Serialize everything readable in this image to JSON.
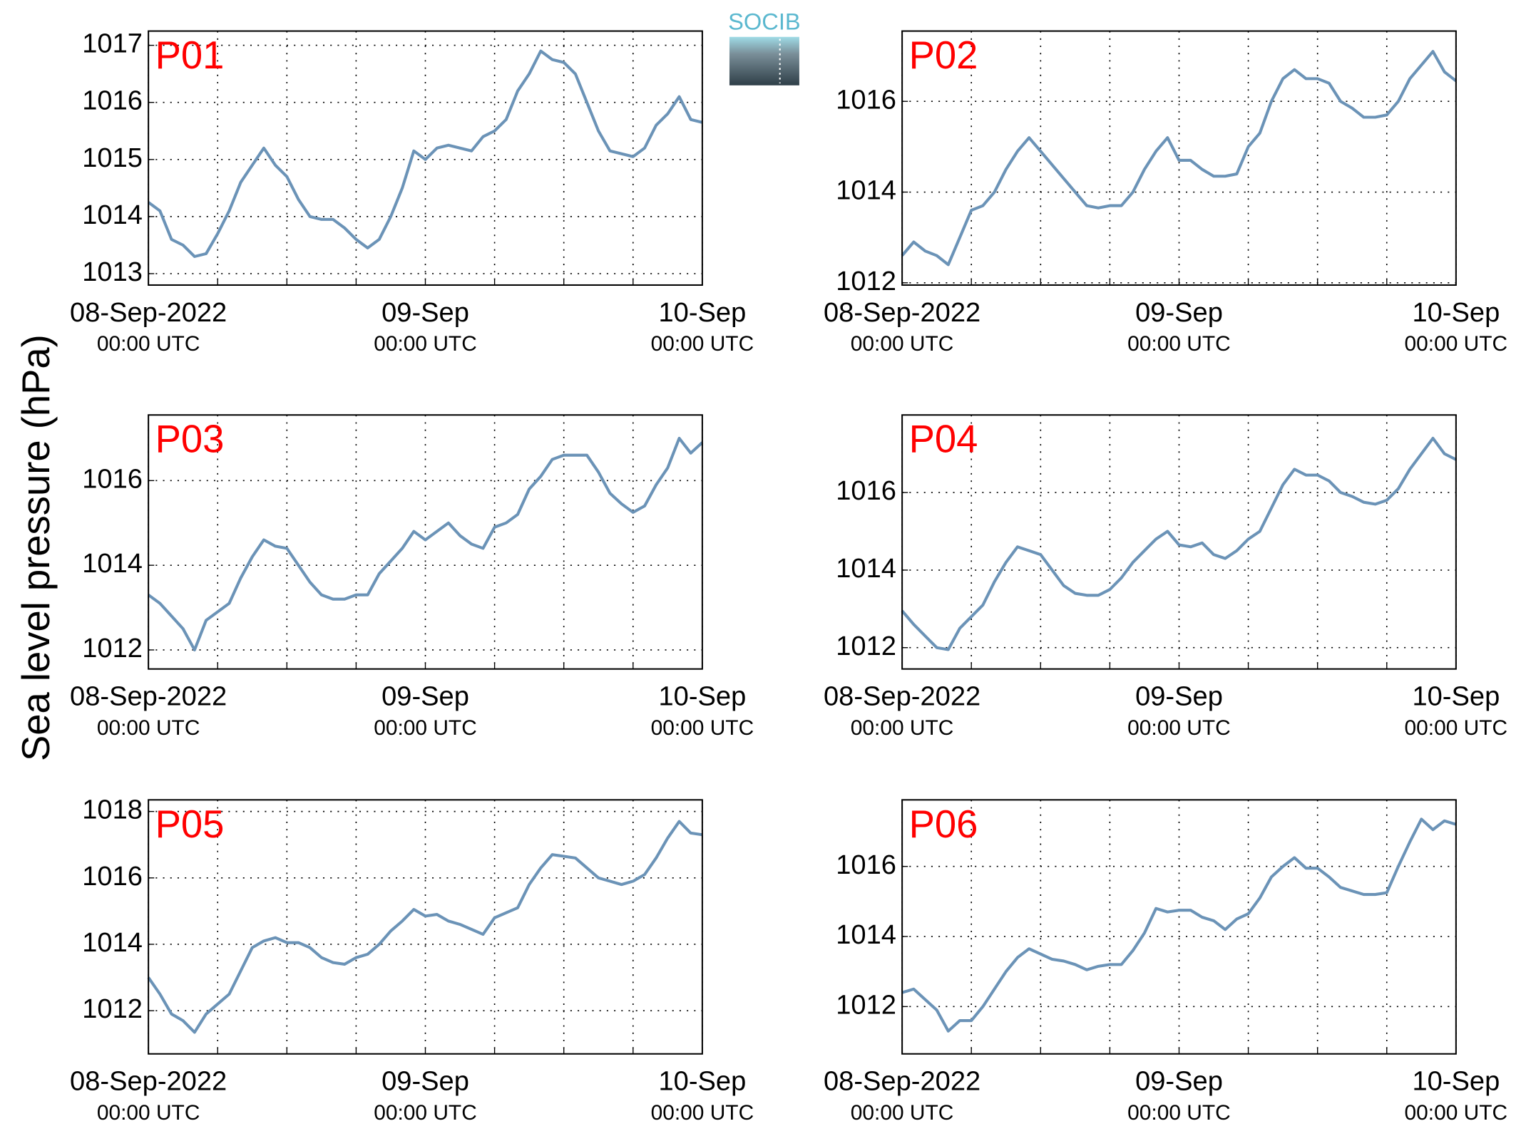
{
  "ylabel": "Sea level pressure (hPa)",
  "logo": "SOCIB",
  "chart_data": [
    {
      "type": "line",
      "title": "P01",
      "x": [
        0,
        1,
        2,
        3,
        4,
        5,
        6,
        7,
        8,
        9,
        10,
        11,
        12,
        13,
        14,
        15,
        16,
        17,
        18,
        19,
        20,
        21,
        22,
        23,
        24,
        25,
        26,
        27,
        28,
        29,
        30,
        31,
        32,
        33,
        34,
        35,
        36,
        37,
        38,
        39,
        40,
        41,
        42,
        43,
        44,
        45,
        46,
        47,
        48
      ],
      "series": [
        {
          "color": "#6b93b7",
          "values": [
            1014.25,
            1014.1,
            1013.6,
            1013.5,
            1013.3,
            1013.35,
            1013.7,
            1014.1,
            1014.6,
            1014.9,
            1015.2,
            1014.9,
            1014.7,
            1014.3,
            1014.0,
            1013.95,
            1013.95,
            1013.8,
            1013.6,
            1013.45,
            1013.6,
            1014.0,
            1014.5,
            1015.15,
            1015.0,
            1015.2,
            1015.25,
            1015.2,
            1015.15,
            1015.4,
            1015.5,
            1015.7,
            1016.2,
            1016.5,
            1016.9,
            1016.75,
            1016.7,
            1016.5,
            1016.0,
            1015.5,
            1015.15,
            1015.1,
            1015.05,
            1015.2,
            1015.6,
            1015.8,
            1016.1,
            1015.7,
            1015.65
          ]
        }
      ],
      "xlim": [
        0,
        48
      ],
      "xticks": [
        {
          "value": 0,
          "label": "08-Sep-2022"
        },
        {
          "value": 24,
          "label": "09-Sep"
        },
        {
          "value": 48,
          "label": "10-Sep"
        }
      ],
      "xtick_sublabels": [
        "00:00 UTC",
        "00:00 UTC",
        "00:00 UTC"
      ],
      "xgrid": [
        6,
        12,
        18,
        30,
        36,
        42
      ],
      "ylim": [
        1012.8,
        1017.25
      ],
      "yticks": [
        1013,
        1014,
        1015,
        1016,
        1017
      ],
      "grid": true
    },
    {
      "type": "line",
      "title": "P02",
      "x": [
        0,
        1,
        2,
        3,
        4,
        5,
        6,
        7,
        8,
        9,
        10,
        11,
        12,
        13,
        14,
        15,
        16,
        17,
        18,
        19,
        20,
        21,
        22,
        23,
        24,
        25,
        26,
        27,
        28,
        29,
        30,
        31,
        32,
        33,
        34,
        35,
        36,
        37,
        38,
        39,
        40,
        41,
        42,
        43,
        44,
        45,
        46,
        47,
        48
      ],
      "series": [
        {
          "color": "#6b93b7",
          "values": [
            1012.6,
            1012.9,
            1012.7,
            1012.6,
            1012.4,
            1013.0,
            1013.6,
            1013.7,
            1014.0,
            1014.5,
            1014.9,
            1015.2,
            1014.9,
            1014.6,
            1014.3,
            1014.0,
            1013.7,
            1013.65,
            1013.7,
            1013.7,
            1014.0,
            1014.5,
            1014.9,
            1015.2,
            1014.7,
            1014.7,
            1014.5,
            1014.35,
            1014.35,
            1014.4,
            1015.0,
            1015.3,
            1016.0,
            1016.5,
            1016.7,
            1016.5,
            1016.5,
            1016.4,
            1016.0,
            1015.85,
            1015.65,
            1015.65,
            1015.7,
            1016.0,
            1016.5,
            1016.8,
            1017.1,
            1016.65,
            1016.45
          ]
        }
      ],
      "xlim": [
        0,
        48
      ],
      "xticks": [
        {
          "value": 0,
          "label": "08-Sep-2022"
        },
        {
          "value": 24,
          "label": "09-Sep"
        },
        {
          "value": 48,
          "label": "10-Sep"
        }
      ],
      "xtick_sublabels": [
        "00:00 UTC",
        "00:00 UTC",
        "00:00 UTC"
      ],
      "xgrid": [
        6,
        12,
        18,
        30,
        36,
        42
      ],
      "ylim": [
        1011.95,
        1017.55
      ],
      "yticks": [
        1012,
        1014,
        1016
      ],
      "grid": true
    },
    {
      "type": "line",
      "title": "P03",
      "x": [
        0,
        1,
        2,
        3,
        4,
        5,
        6,
        7,
        8,
        9,
        10,
        11,
        12,
        13,
        14,
        15,
        16,
        17,
        18,
        19,
        20,
        21,
        22,
        23,
        24,
        25,
        26,
        27,
        28,
        29,
        30,
        31,
        32,
        33,
        34,
        35,
        36,
        37,
        38,
        39,
        40,
        41,
        42,
        43,
        44,
        45,
        46,
        47,
        48
      ],
      "series": [
        {
          "color": "#6b93b7",
          "values": [
            1013.3,
            1013.1,
            1012.8,
            1012.5,
            1012.0,
            1012.7,
            1012.9,
            1013.1,
            1013.7,
            1014.2,
            1014.6,
            1014.45,
            1014.4,
            1014.0,
            1013.6,
            1013.3,
            1013.2,
            1013.2,
            1013.3,
            1013.3,
            1013.8,
            1014.1,
            1014.4,
            1014.8,
            1014.6,
            1014.8,
            1015.0,
            1014.7,
            1014.5,
            1014.4,
            1014.9,
            1015.0,
            1015.2,
            1015.8,
            1016.1,
            1016.5,
            1016.6,
            1016.6,
            1016.6,
            1016.2,
            1015.7,
            1015.45,
            1015.25,
            1015.4,
            1015.9,
            1016.3,
            1017.0,
            1016.65,
            1016.9
          ]
        }
      ],
      "xlim": [
        0,
        48
      ],
      "xticks": [
        {
          "value": 0,
          "label": "08-Sep-2022"
        },
        {
          "value": 24,
          "label": "09-Sep"
        },
        {
          "value": 48,
          "label": "10-Sep"
        }
      ],
      "xtick_sublabels": [
        "00:00 UTC",
        "00:00 UTC",
        "00:00 UTC"
      ],
      "xgrid": [
        6,
        12,
        18,
        30,
        36,
        42
      ],
      "ylim": [
        1011.55,
        1017.55
      ],
      "yticks": [
        1012,
        1014,
        1016
      ],
      "grid": true
    },
    {
      "type": "line",
      "title": "P04",
      "x": [
        0,
        1,
        2,
        3,
        4,
        5,
        6,
        7,
        8,
        9,
        10,
        11,
        12,
        13,
        14,
        15,
        16,
        17,
        18,
        19,
        20,
        21,
        22,
        23,
        24,
        25,
        26,
        27,
        28,
        29,
        30,
        31,
        32,
        33,
        34,
        35,
        36,
        37,
        38,
        39,
        40,
        41,
        42,
        43,
        44,
        45,
        46,
        47,
        48
      ],
      "series": [
        {
          "color": "#6b93b7",
          "values": [
            1012.95,
            1012.6,
            1012.3,
            1012.0,
            1011.95,
            1012.5,
            1012.8,
            1013.1,
            1013.7,
            1014.2,
            1014.6,
            1014.5,
            1014.4,
            1014.0,
            1013.6,
            1013.4,
            1013.35,
            1013.35,
            1013.5,
            1013.8,
            1014.2,
            1014.5,
            1014.8,
            1015.0,
            1014.65,
            1014.6,
            1014.7,
            1014.4,
            1014.3,
            1014.5,
            1014.8,
            1015.0,
            1015.6,
            1016.2,
            1016.6,
            1016.45,
            1016.45,
            1016.3,
            1016.0,
            1015.9,
            1015.75,
            1015.7,
            1015.8,
            1016.1,
            1016.6,
            1017.0,
            1017.4,
            1017.0,
            1016.85
          ]
        }
      ],
      "xlim": [
        0,
        48
      ],
      "xticks": [
        {
          "value": 0,
          "label": "08-Sep-2022"
        },
        {
          "value": 24,
          "label": "09-Sep"
        },
        {
          "value": 48,
          "label": "10-Sep"
        }
      ],
      "xtick_sublabels": [
        "00:00 UTC",
        "00:00 UTC",
        "00:00 UTC"
      ],
      "xgrid": [
        6,
        12,
        18,
        30,
        36,
        42
      ],
      "ylim": [
        1011.45,
        1018.0
      ],
      "yticks": [
        1012,
        1014,
        1016
      ],
      "grid": true
    },
    {
      "type": "line",
      "title": "P05",
      "x": [
        0,
        1,
        2,
        3,
        4,
        5,
        6,
        7,
        8,
        9,
        10,
        11,
        12,
        13,
        14,
        15,
        16,
        17,
        18,
        19,
        20,
        21,
        22,
        23,
        24,
        25,
        26,
        27,
        28,
        29,
        30,
        31,
        32,
        33,
        34,
        35,
        36,
        37,
        38,
        39,
        40,
        41,
        42,
        43,
        44,
        45,
        46,
        47,
        48
      ],
      "series": [
        {
          "color": "#6b93b7",
          "values": [
            1013.0,
            1012.5,
            1011.9,
            1011.7,
            1011.35,
            1011.9,
            1012.2,
            1012.5,
            1013.2,
            1013.9,
            1014.1,
            1014.2,
            1014.05,
            1014.05,
            1013.9,
            1013.6,
            1013.45,
            1013.4,
            1013.6,
            1013.7,
            1014.0,
            1014.4,
            1014.7,
            1015.05,
            1014.85,
            1014.9,
            1014.7,
            1014.6,
            1014.45,
            1014.3,
            1014.8,
            1014.95,
            1015.1,
            1015.8,
            1016.3,
            1016.7,
            1016.65,
            1016.6,
            1016.3,
            1016.0,
            1015.9,
            1015.8,
            1015.9,
            1016.1,
            1016.6,
            1017.2,
            1017.7,
            1017.35,
            1017.3
          ]
        }
      ],
      "xlim": [
        0,
        48
      ],
      "xticks": [
        {
          "value": 0,
          "label": "08-Sep-2022"
        },
        {
          "value": 24,
          "label": "09-Sep"
        },
        {
          "value": 48,
          "label": "10-Sep"
        }
      ],
      "xtick_sublabels": [
        "00:00 UTC",
        "00:00 UTC",
        "00:00 UTC"
      ],
      "xgrid": [
        6,
        12,
        18,
        30,
        36,
        42
      ],
      "ylim": [
        1010.7,
        1018.35
      ],
      "yticks": [
        1012,
        1014,
        1016,
        1018
      ],
      "grid": true
    },
    {
      "type": "line",
      "title": "P06",
      "x": [
        0,
        1,
        2,
        3,
        4,
        5,
        6,
        7,
        8,
        9,
        10,
        11,
        12,
        13,
        14,
        15,
        16,
        17,
        18,
        19,
        20,
        21,
        22,
        23,
        24,
        25,
        26,
        27,
        28,
        29,
        30,
        31,
        32,
        33,
        34,
        35,
        36,
        37,
        38,
        39,
        40,
        41,
        42,
        43,
        44,
        45,
        46,
        47,
        48
      ],
      "series": [
        {
          "color": "#6b93b7",
          "values": [
            1012.4,
            1012.5,
            1012.2,
            1011.9,
            1011.3,
            1011.6,
            1011.6,
            1012.0,
            1012.5,
            1013.0,
            1013.4,
            1013.65,
            1013.5,
            1013.35,
            1013.3,
            1013.2,
            1013.05,
            1013.15,
            1013.2,
            1013.2,
            1013.6,
            1014.1,
            1014.8,
            1014.7,
            1014.75,
            1014.75,
            1014.55,
            1014.45,
            1014.2,
            1014.5,
            1014.65,
            1015.1,
            1015.7,
            1016.0,
            1016.25,
            1015.95,
            1015.95,
            1015.7,
            1015.4,
            1015.3,
            1015.2,
            1015.2,
            1015.25,
            1016.0,
            1016.7,
            1017.35,
            1017.05,
            1017.3,
            1017.2
          ]
        }
      ],
      "xlim": [
        0,
        48
      ],
      "xticks": [
        {
          "value": 0,
          "label": "08-Sep-2022"
        },
        {
          "value": 24,
          "label": "09-Sep"
        },
        {
          "value": 48,
          "label": "10-Sep"
        }
      ],
      "xtick_sublabels": [
        "00:00 UTC",
        "00:00 UTC",
        "00:00 UTC"
      ],
      "xgrid": [
        6,
        12,
        18,
        30,
        36,
        42
      ],
      "ylim": [
        1010.65,
        1017.9
      ],
      "yticks": [
        1012,
        1014,
        1016
      ],
      "grid": true
    }
  ]
}
